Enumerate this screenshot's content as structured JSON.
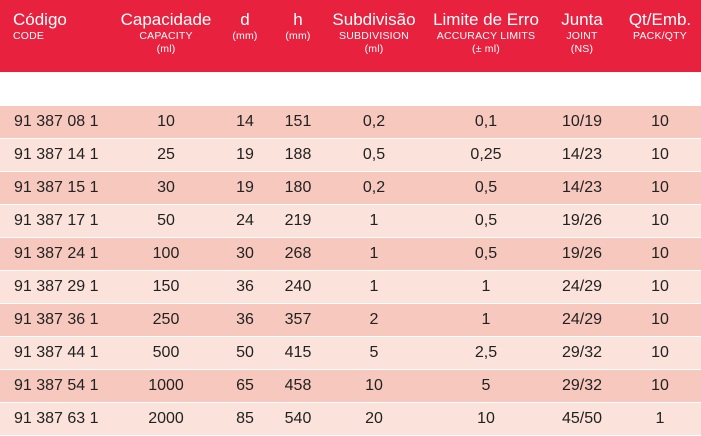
{
  "header": {
    "columns": [
      {
        "main": "Código",
        "sub": "CODE"
      },
      {
        "main": "Capacidade",
        "sub": "CAPACITY",
        "sub2": "(ml)"
      },
      {
        "main": "d",
        "sub": "(mm)"
      },
      {
        "main": "h",
        "sub": "(mm)"
      },
      {
        "main": "Subdivisão",
        "sub": "SUBDIVISION",
        "sub2": "(ml)"
      },
      {
        "main": "Limite de Erro",
        "sub": "ACCURACY LIMITS",
        "sub2": "(± ml)"
      },
      {
        "main": "Junta",
        "sub": "JOINT",
        "sub2": "(NS)"
      },
      {
        "main": "Qt/Emb.",
        "sub": "PACK/QTY"
      }
    ]
  },
  "rows": [
    [
      "91 387 08 1",
      "10",
      "14",
      "151",
      "0,2",
      "0,1",
      "10/19",
      "10"
    ],
    [
      "91 387 14 1",
      "25",
      "19",
      "188",
      "0,5",
      "0,25",
      "14/23",
      "10"
    ],
    [
      "91 387 15 1",
      "30",
      "19",
      "180",
      "0,2",
      "0,5",
      "14/23",
      "10"
    ],
    [
      "91 387 17 1",
      "50",
      "24",
      "219",
      "1",
      "0,5",
      "19/26",
      "10"
    ],
    [
      "91 387 24 1",
      "100",
      "30",
      "268",
      "1",
      "0,5",
      "19/26",
      "10"
    ],
    [
      "91 387 29 1",
      "150",
      "36",
      "240",
      "1",
      "1",
      "24/29",
      "10"
    ],
    [
      "91 387 36 1",
      "250",
      "36",
      "357",
      "2",
      "1",
      "24/29",
      "10"
    ],
    [
      "91 387 44 1",
      "500",
      "50",
      "415",
      "5",
      "2,5",
      "29/32",
      "10"
    ],
    [
      "91 387 54 1",
      "1000",
      "65",
      "458",
      "10",
      "5",
      "29/32",
      "10"
    ],
    [
      "91 387 63 1",
      "2000",
      "85",
      "540",
      "20",
      "10",
      "45/50",
      "1"
    ]
  ],
  "colors": {
    "header_bg": "#e8213f",
    "row_dark": "#f7c8bd",
    "row_light": "#fbe2db"
  }
}
